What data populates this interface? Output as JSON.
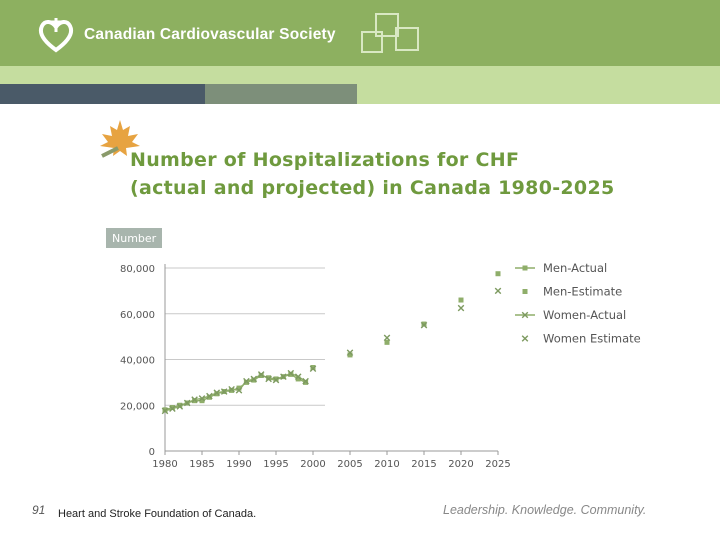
{
  "header": {
    "org_name": "Canadian Cardiovascular Society"
  },
  "slide": {
    "title_line1": "Number of Hospitalizations for CHF",
    "title_line2": "(actual and projected) in Canada 1980-2025"
  },
  "footer": {
    "slide_number": "91",
    "source": "Heart and Stroke Foundation of Canada.",
    "tagline": "Leadership. Knowledge. Community."
  },
  "colors": {
    "header_green": "#8db060",
    "title_green": "#6f9a3e",
    "series_green": "#8fae6a"
  },
  "chart_data": {
    "type": "line",
    "title": "Number of Hospitalizations for CHF (actual and projected) in Canada 1980-2025",
    "ylabel": "Number",
    "xlabel": "",
    "xlim": [
      1980,
      2025
    ],
    "ylim": [
      0,
      80000
    ],
    "x_ticks": [
      "1980",
      "1985",
      "1990",
      "1995",
      "2000",
      "2005",
      "2010",
      "2015",
      "2020",
      "2025"
    ],
    "y_ticks": [
      "0",
      "20,000",
      "40,000",
      "60,000",
      "80,000"
    ],
    "legend_position": "right",
    "series": [
      {
        "name": "Men-Actual",
        "style": "line-square",
        "x": [
          1980,
          1981,
          1982,
          1983,
          1984,
          1985,
          1986,
          1987,
          1988,
          1989,
          1990,
          1991,
          1992,
          1993,
          1994,
          1995,
          1996,
          1997,
          1998,
          1999
        ],
        "values": [
          18000,
          19000,
          20000,
          21000,
          22000,
          22000,
          23500,
          25000,
          26000,
          26500,
          27500,
          30000,
          31000,
          33000,
          32000,
          31500,
          32500,
          33500,
          31500,
          30000
        ]
      },
      {
        "name": "Men-Estimate",
        "style": "square",
        "x": [
          2000,
          2005,
          2010,
          2015,
          2020,
          2025
        ],
        "values": [
          36500,
          42000,
          47500,
          55500,
          66000,
          77500
        ]
      },
      {
        "name": "Women-Actual",
        "style": "line-x",
        "x": [
          1980,
          1981,
          1982,
          1983,
          1984,
          1985,
          1986,
          1987,
          1988,
          1989,
          1990,
          1991,
          1992,
          1993,
          1994,
          1995,
          1996,
          1997,
          1998,
          1999
        ],
        "values": [
          17500,
          18500,
          19500,
          21000,
          22500,
          23000,
          24000,
          25500,
          26000,
          27000,
          26500,
          30500,
          31500,
          33500,
          31500,
          31000,
          32500,
          34000,
          32500,
          30500
        ]
      },
      {
        "name": "Women Estimate",
        "style": "x",
        "x": [
          2000,
          2005,
          2010,
          2015,
          2020,
          2025
        ],
        "values": [
          36000,
          43000,
          49500,
          55000,
          62500,
          70000
        ]
      }
    ]
  }
}
